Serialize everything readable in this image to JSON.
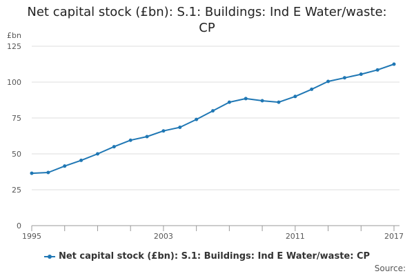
{
  "title": {
    "line1": "Net capital stock (£bn): S.1: Buildings: Ind E Water/waste:",
    "line2": "CP"
  },
  "source_label": "Source:",
  "colors": {
    "series": "#1f77b4",
    "grid": "#dddddd",
    "axis": "#999999"
  },
  "chart_data": {
    "type": "line",
    "title": "Net capital stock (£bn): S.1: Buildings: Ind E Water/waste: CP",
    "xlabel": "",
    "ylabel": "£bn",
    "x": [
      1995,
      1996,
      1997,
      1998,
      1999,
      2000,
      2001,
      2002,
      2003,
      2004,
      2005,
      2006,
      2007,
      2008,
      2009,
      2010,
      2011,
      2012,
      2013,
      2014,
      2015,
      2016,
      2017
    ],
    "series": [
      {
        "name": "Net capital stock (£bn): S.1: Buildings: Ind E Water/waste: CP",
        "values": [
          36.5,
          37,
          41.5,
          45.5,
          50,
          55,
          59.5,
          62,
          66,
          68.5,
          74,
          80,
          86,
          88.5,
          87,
          86,
          90,
          95,
          100.5,
          103,
          105.5,
          108.5,
          112.5
        ]
      }
    ],
    "xlim": [
      1995,
      2017
    ],
    "ylim": [
      0,
      125
    ],
    "yticks": [
      0,
      25,
      50,
      75,
      100,
      125
    ],
    "xtick_labels": [
      1995,
      2003,
      2011,
      2017
    ],
    "grid": true,
    "legend_position": "bottom"
  }
}
